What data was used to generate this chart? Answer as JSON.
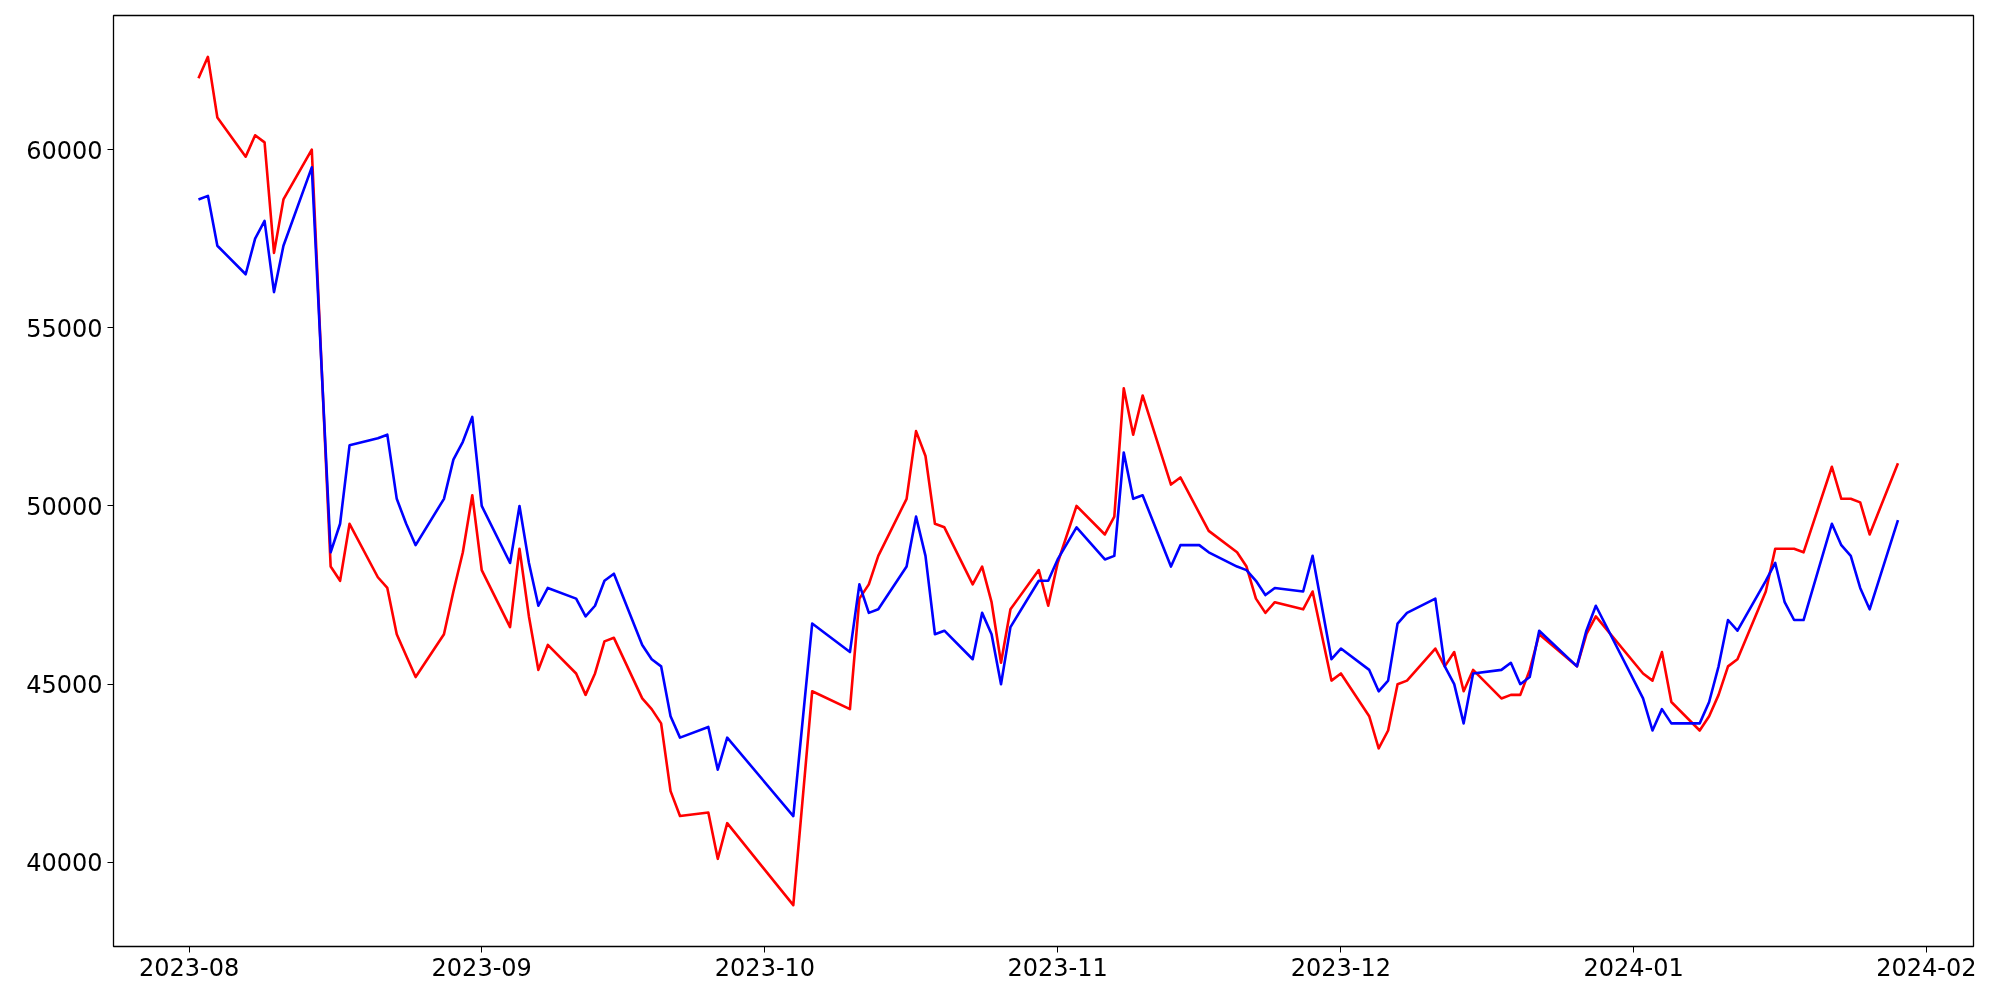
{
  "chart_data": {
    "type": "line",
    "x": [
      "2023-08-02",
      "2023-08-03",
      "2023-08-04",
      "2023-08-07",
      "2023-08-08",
      "2023-08-09",
      "2023-08-10",
      "2023-08-11",
      "2023-08-14",
      "2023-08-16",
      "2023-08-17",
      "2023-08-18",
      "2023-08-21",
      "2023-08-22",
      "2023-08-23",
      "2023-08-24",
      "2023-08-25",
      "2023-08-28",
      "2023-08-29",
      "2023-08-30",
      "2023-08-31",
      "2023-09-01",
      "2023-09-04",
      "2023-09-05",
      "2023-09-06",
      "2023-09-07",
      "2023-09-08",
      "2023-09-11",
      "2023-09-12",
      "2023-09-13",
      "2023-09-14",
      "2023-09-15",
      "2023-09-18",
      "2023-09-19",
      "2023-09-20",
      "2023-09-21",
      "2023-09-22",
      "2023-09-25",
      "2023-09-26",
      "2023-09-27",
      "2023-10-04",
      "2023-10-06",
      "2023-10-10",
      "2023-10-11",
      "2023-10-12",
      "2023-10-13",
      "2023-10-16",
      "2023-10-17",
      "2023-10-18",
      "2023-10-19",
      "2023-10-20",
      "2023-10-23",
      "2023-10-24",
      "2023-10-25",
      "2023-10-26",
      "2023-10-27",
      "2023-10-30",
      "2023-10-31",
      "2023-11-01",
      "2023-11-03",
      "2023-11-06",
      "2023-11-07",
      "2023-11-08",
      "2023-11-09",
      "2023-11-10",
      "2023-11-13",
      "2023-11-14",
      "2023-11-16",
      "2023-11-17",
      "2023-11-20",
      "2023-11-21",
      "2023-11-22",
      "2023-11-23",
      "2023-11-24",
      "2023-11-27",
      "2023-11-28",
      "2023-11-30",
      "2023-12-01",
      "2023-12-04",
      "2023-12-05",
      "2023-12-06",
      "2023-12-07",
      "2023-12-08",
      "2023-12-11",
      "2023-12-12",
      "2023-12-13",
      "2023-12-14",
      "2023-12-15",
      "2023-12-18",
      "2023-12-19",
      "2023-12-20",
      "2023-12-21",
      "2023-12-22",
      "2023-12-26",
      "2023-12-27",
      "2023-12-28",
      "2024-01-02",
      "2024-01-03",
      "2024-01-04",
      "2024-01-05",
      "2024-01-08",
      "2024-01-09",
      "2024-01-10",
      "2024-01-11",
      "2024-01-12",
      "2024-01-15",
      "2024-01-16",
      "2024-01-17",
      "2024-01-18",
      "2024-01-19",
      "2024-01-22",
      "2024-01-23",
      "2024-01-24",
      "2024-01-25",
      "2024-01-26",
      "2024-01-29"
    ],
    "series": [
      {
        "color": "#ff0000",
        "values": [
          62000,
          62600,
          60900,
          59800,
          60400,
          60200,
          57100,
          58600,
          60000,
          48300,
          47900,
          49500,
          48000,
          47700,
          46400,
          45800,
          45200,
          46400,
          47600,
          48700,
          50300,
          48200,
          46600,
          48800,
          46900,
          45400,
          46100,
          45300,
          44700,
          45300,
          46200,
          46300,
          44600,
          44300,
          43900,
          42000,
          41300,
          41400,
          40100,
          41100,
          38800,
          44800,
          44300,
          47400,
          47800,
          48600,
          50200,
          52100,
          51400,
          49500,
          49400,
          47800,
          48300,
          47300,
          45600,
          47100,
          48200,
          47200,
          48400,
          50000,
          49200,
          49700,
          53300,
          52000,
          53100,
          50600,
          50800,
          49800,
          49300,
          48700,
          48300,
          47400,
          47000,
          47300,
          47100,
          47600,
          45100,
          45300,
          44100,
          43200,
          43700,
          45000,
          45100,
          46000,
          45500,
          45900,
          44800,
          45400,
          44600,
          44700,
          44700,
          45400,
          46400,
          45500,
          46400,
          46900,
          45300,
          45100,
          45900,
          44500,
          43700,
          44100,
          44700,
          45500,
          45700,
          47600,
          48800,
          48800,
          48800,
          48700,
          51100,
          50200,
          50200,
          50100,
          49200,
          51200
        ]
      },
      {
        "color": "#0000ff",
        "values": [
          58600,
          58700,
          57300,
          56500,
          57500,
          58000,
          56000,
          57300,
          59500,
          48700,
          49500,
          51700,
          51900,
          52000,
          50200,
          49500,
          48900,
          50200,
          51300,
          51800,
          52500,
          50000,
          48400,
          50000,
          48400,
          47200,
          47700,
          47400,
          46900,
          47200,
          47900,
          48100,
          46100,
          45700,
          45500,
          44100,
          43500,
          43800,
          42600,
          43500,
          41300,
          46700,
          45900,
          47800,
          47000,
          47100,
          48300,
          49700,
          48600,
          46400,
          46500,
          45700,
          47000,
          46400,
          45000,
          46600,
          47900,
          47900,
          48500,
          49400,
          48500,
          48600,
          51500,
          50200,
          50300,
          48300,
          48900,
          48900,
          48700,
          48300,
          48200,
          47900,
          47500,
          47700,
          47600,
          48600,
          45700,
          46000,
          45400,
          44800,
          45100,
          46700,
          47000,
          47400,
          45500,
          45000,
          43900,
          45300,
          45400,
          45600,
          45000,
          45200,
          46500,
          45500,
          46500,
          47200,
          44600,
          43700,
          44300,
          43900,
          43900,
          44500,
          45500,
          46800,
          46500,
          47900,
          48400,
          47300,
          46800,
          46800,
          49500,
          48900,
          48600,
          47700,
          47100,
          49600
        ]
      }
    ],
    "xlim": [
      "2023-07-24",
      "2024-02-06"
    ],
    "xticks": [
      {
        "value": "2023-08-01",
        "label": "2023-08"
      },
      {
        "value": "2023-09-01",
        "label": "2023-09"
      },
      {
        "value": "2023-10-01",
        "label": "2023-10"
      },
      {
        "value": "2023-11-01",
        "label": "2023-11"
      },
      {
        "value": "2023-12-01",
        "label": "2023-12"
      },
      {
        "value": "2024-01-01",
        "label": "2024-01"
      },
      {
        "value": "2024-02-01",
        "label": "2024-02"
      }
    ],
    "ylim": [
      37640,
      63760
    ],
    "yticks": [
      40000,
      45000,
      50000,
      55000,
      60000
    ],
    "grid": false
  }
}
